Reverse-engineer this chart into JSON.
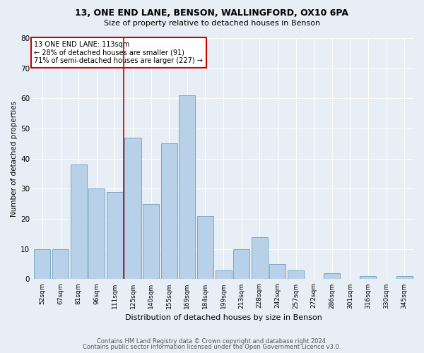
{
  "title1": "13, ONE END LANE, BENSON, WALLINGFORD, OX10 6PA",
  "title2": "Size of property relative to detached houses in Benson",
  "xlabel": "Distribution of detached houses by size in Benson",
  "ylabel": "Number of detached properties",
  "footnote1": "Contains HM Land Registry data © Crown copyright and database right 2024.",
  "footnote2": "Contains public sector information licensed under the Open Government Licence v3.0.",
  "annotation_line1": "13 ONE END LANE: 113sqm",
  "annotation_line2": "← 28% of detached houses are smaller (91)",
  "annotation_line3": "71% of semi-detached houses are larger (227) →",
  "categories": [
    "52sqm",
    "67sqm",
    "81sqm",
    "96sqm",
    "111sqm",
    "125sqm",
    "140sqm",
    "155sqm",
    "169sqm",
    "184sqm",
    "199sqm",
    "213sqm",
    "228sqm",
    "242sqm",
    "257sqm",
    "272sqm",
    "286sqm",
    "301sqm",
    "316sqm",
    "330sqm",
    "345sqm"
  ],
  "values": [
    10,
    10,
    38,
    30,
    29,
    47,
    25,
    45,
    61,
    21,
    3,
    10,
    14,
    5,
    3,
    0,
    2,
    0,
    1,
    0,
    1
  ],
  "bar_color": "#b8d0e8",
  "bar_edge_color": "#6a9fbd",
  "vline_color": "#cc0000",
  "background_color": "#e8eef5",
  "plot_bg_color": "#e8eef5",
  "ylim": [
    0,
    80
  ],
  "yticks": [
    0,
    10,
    20,
    30,
    40,
    50,
    60,
    70,
    80
  ],
  "vline_x": 4.5
}
